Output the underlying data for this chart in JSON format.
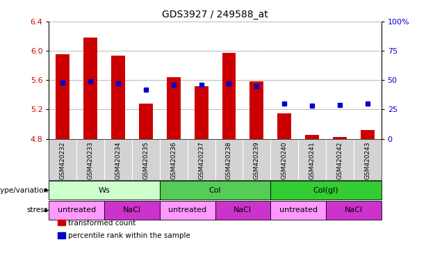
{
  "title": "GDS3927 / 249588_at",
  "samples": [
    "GSM420232",
    "GSM420233",
    "GSM420234",
    "GSM420235",
    "GSM420236",
    "GSM420237",
    "GSM420238",
    "GSM420239",
    "GSM420240",
    "GSM420241",
    "GSM420242",
    "GSM420243"
  ],
  "bar_values": [
    5.95,
    6.18,
    5.93,
    5.28,
    5.64,
    5.52,
    5.97,
    5.58,
    5.15,
    4.85,
    4.83,
    4.92
  ],
  "bar_bottom": 4.8,
  "dot_percentile": [
    48,
    49,
    47,
    42,
    46,
    46,
    47,
    45,
    30,
    28,
    29,
    30
  ],
  "ylim": [
    4.8,
    6.4
  ],
  "yticks_left": [
    4.8,
    5.2,
    5.6,
    6.0,
    6.4
  ],
  "yticks_right": [
    0,
    25,
    50,
    75,
    100
  ],
  "bar_color": "#cc0000",
  "dot_color": "#0000cc",
  "geno_data": [
    {
      "label": "Ws",
      "start": 0,
      "end": 3,
      "color": "#ccffcc"
    },
    {
      "label": "Col",
      "start": 4,
      "end": 7,
      "color": "#55cc55"
    },
    {
      "label": "Col(gl)",
      "start": 8,
      "end": 11,
      "color": "#33cc33"
    }
  ],
  "stress_data": [
    {
      "label": "untreated",
      "start": 0,
      "end": 1,
      "color": "#ff99ff"
    },
    {
      "label": "NaCl",
      "start": 2,
      "end": 3,
      "color": "#cc33cc"
    },
    {
      "label": "untreated",
      "start": 4,
      "end": 5,
      "color": "#ff99ff"
    },
    {
      "label": "NaCl",
      "start": 6,
      "end": 7,
      "color": "#cc33cc"
    },
    {
      "label": "untreated",
      "start": 8,
      "end": 9,
      "color": "#ff99ff"
    },
    {
      "label": "NaCl",
      "start": 10,
      "end": 11,
      "color": "#cc33cc"
    }
  ],
  "legend_items": [
    {
      "label": "transformed count",
      "color": "#cc0000"
    },
    {
      "label": "percentile rank within the sample",
      "color": "#0000cc"
    }
  ],
  "genotype_label": "genotype/variation",
  "stress_label": "stress",
  "sample_bg": "#d3d3d3",
  "tick_color_left": "#cc0000",
  "tick_color_right": "#0000cc"
}
